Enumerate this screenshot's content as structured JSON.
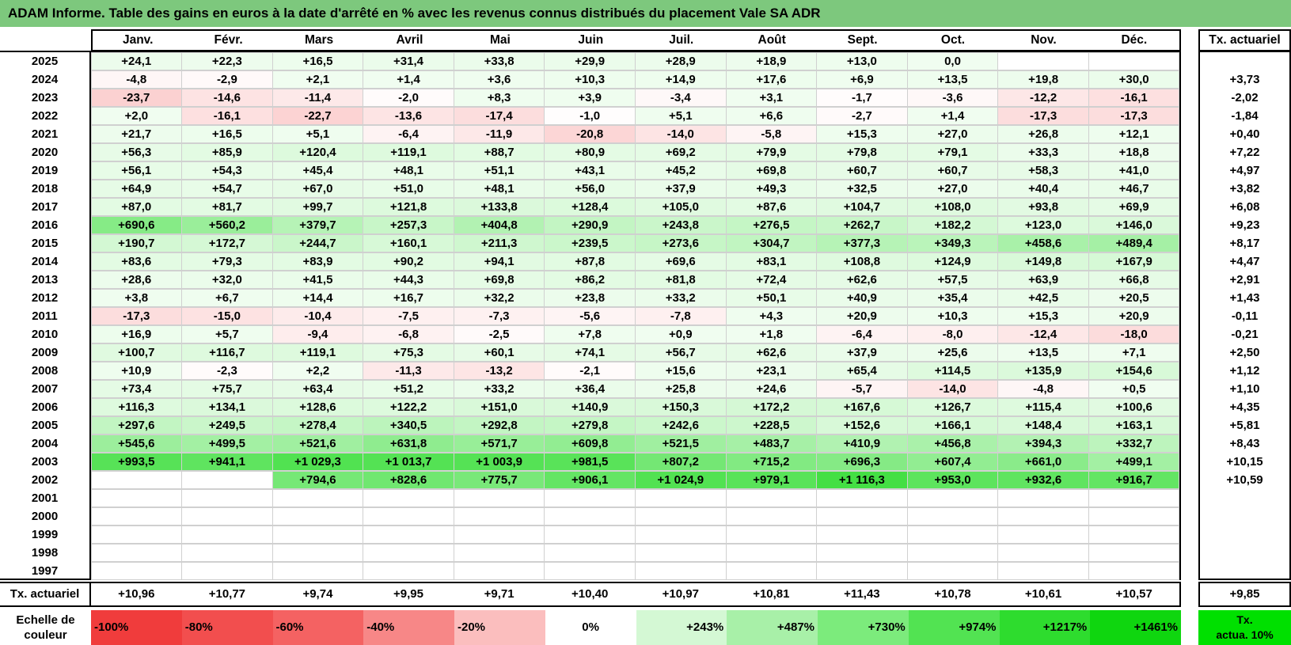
{
  "title": "ADAM Informe. Table des gains en euros à la date d'arrêté en % avec les revenus connus distribués du placement Vale SA ADR",
  "months": [
    "Janv.",
    "Févr.",
    "Mars",
    "Avril",
    "Mai",
    "Juin",
    "Juil.",
    "Août",
    "Sept.",
    "Oct.",
    "Nov.",
    "Déc."
  ],
  "tx_header": "Tx. actuariel",
  "rows": [
    {
      "year": "2025",
      "values": [
        "+24,1",
        "+22,3",
        "+16,5",
        "+31,4",
        "+33,8",
        "+29,9",
        "+28,9",
        "+18,9",
        "+13,0",
        "0,0",
        "",
        ""
      ],
      "tx": ""
    },
    {
      "year": "2024",
      "values": [
        "-4,8",
        "-2,9",
        "+2,1",
        "+1,4",
        "+3,6",
        "+10,3",
        "+14,9",
        "+17,6",
        "+6,9",
        "+13,5",
        "+19,8",
        "+30,0"
      ],
      "tx": "+3,73"
    },
    {
      "year": "2023",
      "values": [
        "-23,7",
        "-14,6",
        "-11,4",
        "-2,0",
        "+8,3",
        "+3,9",
        "-3,4",
        "+3,1",
        "-1,7",
        "-3,6",
        "-12,2",
        "-16,1"
      ],
      "tx": "-2,02"
    },
    {
      "year": "2022",
      "values": [
        "+2,0",
        "-16,1",
        "-22,7",
        "-13,6",
        "-17,4",
        "-1,0",
        "+5,1",
        "+6,6",
        "-2,7",
        "+1,4",
        "-17,3",
        "-17,3"
      ],
      "tx": "-1,84"
    },
    {
      "year": "2021",
      "values": [
        "+21,7",
        "+16,5",
        "+5,1",
        "-6,4",
        "-11,9",
        "-20,8",
        "-14,0",
        "-5,8",
        "+15,3",
        "+27,0",
        "+26,8",
        "+12,1"
      ],
      "tx": "+0,40"
    },
    {
      "year": "2020",
      "values": [
        "+56,3",
        "+85,9",
        "+120,4",
        "+119,1",
        "+88,7",
        "+80,9",
        "+69,2",
        "+79,9",
        "+79,8",
        "+79,1",
        "+33,3",
        "+18,8"
      ],
      "tx": "+7,22"
    },
    {
      "year": "2019",
      "values": [
        "+56,1",
        "+54,3",
        "+45,4",
        "+48,1",
        "+51,1",
        "+43,1",
        "+45,2",
        "+69,8",
        "+60,7",
        "+60,7",
        "+58,3",
        "+41,0"
      ],
      "tx": "+4,97"
    },
    {
      "year": "2018",
      "values": [
        "+64,9",
        "+54,7",
        "+67,0",
        "+51,0",
        "+48,1",
        "+56,0",
        "+37,9",
        "+49,3",
        "+32,5",
        "+27,0",
        "+40,4",
        "+46,7"
      ],
      "tx": "+3,82"
    },
    {
      "year": "2017",
      "values": [
        "+87,0",
        "+81,7",
        "+99,7",
        "+121,8",
        "+133,8",
        "+128,4",
        "+105,0",
        "+87,6",
        "+104,7",
        "+108,0",
        "+93,8",
        "+69,9"
      ],
      "tx": "+6,08"
    },
    {
      "year": "2016",
      "values": [
        "+690,6",
        "+560,2",
        "+379,7",
        "+257,3",
        "+404,8",
        "+290,9",
        "+243,8",
        "+276,5",
        "+262,7",
        "+182,2",
        "+123,0",
        "+146,0"
      ],
      "tx": "+9,23"
    },
    {
      "year": "2015",
      "values": [
        "+190,7",
        "+172,7",
        "+244,7",
        "+160,1",
        "+211,3",
        "+239,5",
        "+273,6",
        "+304,7",
        "+377,3",
        "+349,3",
        "+458,6",
        "+489,4"
      ],
      "tx": "+8,17"
    },
    {
      "year": "2014",
      "values": [
        "+83,6",
        "+79,3",
        "+83,9",
        "+90,2",
        "+94,1",
        "+87,8",
        "+69,6",
        "+83,1",
        "+108,8",
        "+124,9",
        "+149,8",
        "+167,9"
      ],
      "tx": "+4,47"
    },
    {
      "year": "2013",
      "values": [
        "+28,6",
        "+32,0",
        "+41,5",
        "+44,3",
        "+69,8",
        "+86,2",
        "+81,8",
        "+72,4",
        "+62,6",
        "+57,5",
        "+63,9",
        "+66,8"
      ],
      "tx": "+2,91"
    },
    {
      "year": "2012",
      "values": [
        "+3,8",
        "+6,7",
        "+14,4",
        "+16,7",
        "+32,2",
        "+23,8",
        "+33,2",
        "+50,1",
        "+40,9",
        "+35,4",
        "+42,5",
        "+20,5"
      ],
      "tx": "+1,43"
    },
    {
      "year": "2011",
      "values": [
        "-17,3",
        "-15,0",
        "-10,4",
        "-7,5",
        "-7,3",
        "-5,6",
        "-7,8",
        "+4,3",
        "+20,9",
        "+10,3",
        "+15,3",
        "+20,9"
      ],
      "tx": "-0,11"
    },
    {
      "year": "2010",
      "values": [
        "+16,9",
        "+5,7",
        "-9,4",
        "-6,8",
        "-2,5",
        "+7,8",
        "+0,9",
        "+1,8",
        "-6,4",
        "-8,0",
        "-12,4",
        "-18,0"
      ],
      "tx": "-0,21"
    },
    {
      "year": "2009",
      "values": [
        "+100,7",
        "+116,7",
        "+119,1",
        "+75,3",
        "+60,1",
        "+74,1",
        "+56,7",
        "+62,6",
        "+37,9",
        "+25,6",
        "+13,5",
        "+7,1"
      ],
      "tx": "+2,50"
    },
    {
      "year": "2008",
      "values": [
        "+10,9",
        "-2,3",
        "+2,2",
        "-11,3",
        "-13,2",
        "-2,1",
        "+15,6",
        "+23,1",
        "+65,4",
        "+114,5",
        "+135,9",
        "+154,6"
      ],
      "tx": "+1,12"
    },
    {
      "year": "2007",
      "values": [
        "+73,4",
        "+75,7",
        "+63,4",
        "+51,2",
        "+33,2",
        "+36,4",
        "+25,8",
        "+24,6",
        "-5,7",
        "-14,0",
        "-4,8",
        "+0,5"
      ],
      "tx": "+1,10"
    },
    {
      "year": "2006",
      "values": [
        "+116,3",
        "+134,1",
        "+128,6",
        "+122,2",
        "+151,0",
        "+140,9",
        "+150,3",
        "+172,2",
        "+167,6",
        "+126,7",
        "+115,4",
        "+100,6"
      ],
      "tx": "+4,35"
    },
    {
      "year": "2005",
      "values": [
        "+297,6",
        "+249,5",
        "+278,4",
        "+340,5",
        "+292,8",
        "+279,8",
        "+242,6",
        "+228,5",
        "+152,6",
        "+166,1",
        "+148,4",
        "+163,1"
      ],
      "tx": "+5,81"
    },
    {
      "year": "2004",
      "values": [
        "+545,6",
        "+499,5",
        "+521,6",
        "+631,8",
        "+571,7",
        "+609,8",
        "+521,5",
        "+483,7",
        "+410,9",
        "+456,8",
        "+394,3",
        "+332,7"
      ],
      "tx": "+8,43"
    },
    {
      "year": "2003",
      "values": [
        "+993,5",
        "+941,1",
        "+1 029,3",
        "+1 013,7",
        "+1 003,9",
        "+981,5",
        "+807,2",
        "+715,2",
        "+696,3",
        "+607,4",
        "+661,0",
        "+499,1"
      ],
      "tx": "+10,15"
    },
    {
      "year": "2002",
      "values": [
        "",
        "",
        "+794,6",
        "+828,6",
        "+775,7",
        "+906,1",
        "+1 024,9",
        "+979,1",
        "+1 116,3",
        "+953,0",
        "+932,6",
        "+916,7"
      ],
      "tx": "+10,59"
    },
    {
      "year": "2001",
      "values": [
        "",
        "",
        "",
        "",
        "",
        "",
        "",
        "",
        "",
        "",
        "",
        ""
      ],
      "tx": ""
    },
    {
      "year": "2000",
      "values": [
        "",
        "",
        "",
        "",
        "",
        "",
        "",
        "",
        "",
        "",
        "",
        ""
      ],
      "tx": ""
    },
    {
      "year": "1999",
      "values": [
        "",
        "",
        "",
        "",
        "",
        "",
        "",
        "",
        "",
        "",
        "",
        ""
      ],
      "tx": ""
    },
    {
      "year": "1998",
      "values": [
        "",
        "",
        "",
        "",
        "",
        "",
        "",
        "",
        "",
        "",
        "",
        ""
      ],
      "tx": ""
    },
    {
      "year": "1997",
      "values": [
        "",
        "",
        "",
        "",
        "",
        "",
        "",
        "",
        "",
        "",
        "",
        ""
      ],
      "tx": ""
    }
  ],
  "footer": {
    "label": "Tx. actuariel",
    "values": [
      "+10,96",
      "+10,77",
      "+9,74",
      "+9,95",
      "+9,71",
      "+10,40",
      "+10,97",
      "+10,81",
      "+11,43",
      "+10,78",
      "+10,61",
      "+10,57"
    ],
    "tx": "+9,85"
  },
  "scale": {
    "label": "Echelle de couleur",
    "swatches": [
      {
        "text": "-100%",
        "color": "#f03c3c",
        "align": "left"
      },
      {
        "text": "-80%",
        "color": "#f24e4e",
        "align": "left"
      },
      {
        "text": "-60%",
        "color": "#f46262",
        "align": "left"
      },
      {
        "text": "-40%",
        "color": "#f78787",
        "align": "left"
      },
      {
        "text": "-20%",
        "color": "#fbbebe",
        "align": "left"
      },
      {
        "text": "0%",
        "color": "#ffffff",
        "align": "center"
      },
      {
        "text": "+243%",
        "color": "#d4f8d4",
        "align": "right"
      },
      {
        "text": "+487%",
        "color": "#a8f0a8",
        "align": "right"
      },
      {
        "text": "+730%",
        "color": "#7ceb7c",
        "align": "right"
      },
      {
        "text": "+974%",
        "color": "#52e352",
        "align": "right"
      },
      {
        "text": "+1217%",
        "color": "#2edc2e",
        "align": "right"
      },
      {
        "text": "+1461%",
        "color": "#0fd60f",
        "align": "right"
      }
    ],
    "tx_label_1": "Tx.",
    "tx_label_2": "actua. 10%"
  }
}
